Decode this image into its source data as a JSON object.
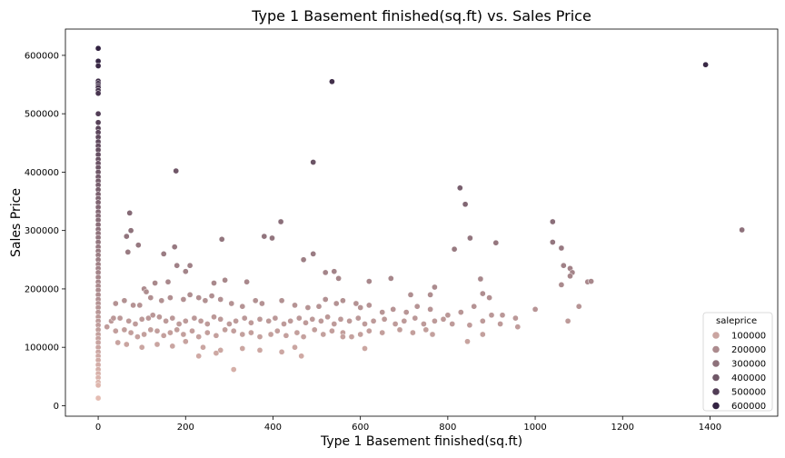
{
  "chart_data": {
    "type": "scatter",
    "title": "Type 1 Basement finished(sq.ft) vs. Sales Price",
    "xlabel": "Type 1 Basement finished(sq.ft)",
    "ylabel": "Sales Price",
    "xlim": [
      -75,
      1555
    ],
    "ylim": [
      -18000,
      645000
    ],
    "xticks": [
      0,
      200,
      400,
      600,
      800,
      1000,
      1200,
      1400
    ],
    "yticks": [
      0,
      100000,
      200000,
      300000,
      400000,
      500000,
      600000
    ],
    "grid": false,
    "legend": {
      "title": "saleprice",
      "placement": "bottom-right",
      "entries": [
        "100000",
        "200000",
        "300000",
        "400000",
        "500000",
        "600000"
      ],
      "values": [
        100000,
        200000,
        300000,
        400000,
        500000,
        600000
      ]
    },
    "hue_range": [
      0,
      625000
    ],
    "color_light": "#e8bfb4",
    "color_dark": "#2d1e3e",
    "points": [
      [
        0,
        612000
      ],
      [
        0,
        590000
      ],
      [
        0,
        582000
      ],
      [
        0,
        556000
      ],
      [
        0,
        552000
      ],
      [
        0,
        548000
      ],
      [
        0,
        545000
      ],
      [
        0,
        540000
      ],
      [
        0,
        535000
      ],
      [
        0,
        500000
      ],
      [
        0,
        485000
      ],
      [
        0,
        475000
      ],
      [
        0,
        468000
      ],
      [
        0,
        460000
      ],
      [
        0,
        452000
      ],
      [
        0,
        445000
      ],
      [
        0,
        438000
      ],
      [
        0,
        430000
      ],
      [
        0,
        422000
      ],
      [
        0,
        415000
      ],
      [
        0,
        408000
      ],
      [
        0,
        400000
      ],
      [
        0,
        392000
      ],
      [
        0,
        385000
      ],
      [
        0,
        378000
      ],
      [
        0,
        370000
      ],
      [
        0,
        362000
      ],
      [
        0,
        355000
      ],
      [
        0,
        348000
      ],
      [
        0,
        340000
      ],
      [
        0,
        332000
      ],
      [
        0,
        325000
      ],
      [
        0,
        318000
      ],
      [
        0,
        310000
      ],
      [
        0,
        302000
      ],
      [
        0,
        295000
      ],
      [
        0,
        288000
      ],
      [
        0,
        280000
      ],
      [
        0,
        272000
      ],
      [
        0,
        265000
      ],
      [
        0,
        258000
      ],
      [
        0,
        250000
      ],
      [
        0,
        242000
      ],
      [
        0,
        235000
      ],
      [
        0,
        228000
      ],
      [
        0,
        220000
      ],
      [
        0,
        212000
      ],
      [
        0,
        205000
      ],
      [
        0,
        198000
      ],
      [
        0,
        190000
      ],
      [
        0,
        182000
      ],
      [
        0,
        175000
      ],
      [
        0,
        168000
      ],
      [
        0,
        160000
      ],
      [
        0,
        152000
      ],
      [
        0,
        145000
      ],
      [
        0,
        138000
      ],
      [
        0,
        130000
      ],
      [
        0,
        122000
      ],
      [
        0,
        115000
      ],
      [
        0,
        108000
      ],
      [
        0,
        100000
      ],
      [
        0,
        92000
      ],
      [
        0,
        85000
      ],
      [
        0,
        78000
      ],
      [
        0,
        70000
      ],
      [
        0,
        62000
      ],
      [
        0,
        55000
      ],
      [
        0,
        48000
      ],
      [
        0,
        40000
      ],
      [
        0,
        35000
      ],
      [
        0,
        13000
      ],
      [
        1390,
        584000
      ],
      [
        535,
        555000
      ],
      [
        1473,
        301000
      ],
      [
        178,
        402000
      ],
      [
        492,
        417000
      ],
      [
        828,
        373000
      ],
      [
        840,
        345000
      ],
      [
        72,
        330000
      ],
      [
        418,
        315000
      ],
      [
        1040,
        315000
      ],
      [
        851,
        287000
      ],
      [
        75,
        300000
      ],
      [
        398,
        287000
      ],
      [
        380,
        290000
      ],
      [
        65,
        290000
      ],
      [
        1040,
        280000
      ],
      [
        910,
        279000
      ],
      [
        1060,
        270000
      ],
      [
        283,
        285000
      ],
      [
        92,
        275000
      ],
      [
        150,
        260000
      ],
      [
        68,
        263000
      ],
      [
        492,
        260000
      ],
      [
        815,
        268000
      ],
      [
        470,
        250000
      ],
      [
        1065,
        240000
      ],
      [
        1080,
        235000
      ],
      [
        1085,
        228000
      ],
      [
        1080,
        222000
      ],
      [
        180,
        240000
      ],
      [
        210,
        240000
      ],
      [
        175,
        272000
      ],
      [
        200,
        230000
      ],
      [
        520,
        228000
      ],
      [
        540,
        230000
      ],
      [
        550,
        218000
      ],
      [
        670,
        218000
      ],
      [
        620,
        213000
      ],
      [
        875,
        217000
      ],
      [
        1120,
        212000
      ],
      [
        1128,
        213000
      ],
      [
        1060,
        207000
      ],
      [
        770,
        203000
      ],
      [
        880,
        192000
      ],
      [
        895,
        185000
      ],
      [
        760,
        190000
      ],
      [
        715,
        190000
      ],
      [
        340,
        212000
      ],
      [
        290,
        215000
      ],
      [
        265,
        210000
      ],
      [
        130,
        210000
      ],
      [
        160,
        212000
      ],
      [
        105,
        200000
      ],
      [
        110,
        195000
      ],
      [
        60,
        180000
      ],
      [
        40,
        175000
      ],
      [
        80,
        172000
      ],
      [
        95,
        172000
      ],
      [
        120,
        185000
      ],
      [
        145,
        180000
      ],
      [
        165,
        185000
      ],
      [
        195,
        182000
      ],
      [
        210,
        190000
      ],
      [
        230,
        185000
      ],
      [
        245,
        180000
      ],
      [
        260,
        188000
      ],
      [
        280,
        182000
      ],
      [
        305,
        175000
      ],
      [
        330,
        170000
      ],
      [
        360,
        180000
      ],
      [
        375,
        175000
      ],
      [
        420,
        180000
      ],
      [
        450,
        172000
      ],
      [
        480,
        168000
      ],
      [
        505,
        170000
      ],
      [
        520,
        182000
      ],
      [
        545,
        175000
      ],
      [
        560,
        180000
      ],
      [
        590,
        175000
      ],
      [
        600,
        168000
      ],
      [
        620,
        172000
      ],
      [
        650,
        160000
      ],
      [
        675,
        165000
      ],
      [
        705,
        160000
      ],
      [
        730,
        170000
      ],
      [
        760,
        165000
      ],
      [
        800,
        155000
      ],
      [
        830,
        160000
      ],
      [
        860,
        170000
      ],
      [
        900,
        155000
      ],
      [
        925,
        155000
      ],
      [
        955,
        150000
      ],
      [
        1000,
        165000
      ],
      [
        1075,
        145000
      ],
      [
        1100,
        170000
      ],
      [
        50,
        150000
      ],
      [
        70,
        145000
      ],
      [
        85,
        140000
      ],
      [
        100,
        148000
      ],
      [
        115,
        150000
      ],
      [
        125,
        155000
      ],
      [
        140,
        152000
      ],
      [
        155,
        145000
      ],
      [
        170,
        150000
      ],
      [
        185,
        140000
      ],
      [
        200,
        145000
      ],
      [
        220,
        150000
      ],
      [
        235,
        145000
      ],
      [
        250,
        140000
      ],
      [
        265,
        152000
      ],
      [
        280,
        148000
      ],
      [
        300,
        140000
      ],
      [
        315,
        145000
      ],
      [
        335,
        150000
      ],
      [
        350,
        142000
      ],
      [
        370,
        148000
      ],
      [
        390,
        145000
      ],
      [
        405,
        150000
      ],
      [
        425,
        140000
      ],
      [
        440,
        145000
      ],
      [
        460,
        150000
      ],
      [
        475,
        142000
      ],
      [
        490,
        148000
      ],
      [
        510,
        145000
      ],
      [
        525,
        152000
      ],
      [
        540,
        140000
      ],
      [
        555,
        148000
      ],
      [
        575,
        145000
      ],
      [
        595,
        150000
      ],
      [
        610,
        140000
      ],
      [
        630,
        145000
      ],
      [
        655,
        148000
      ],
      [
        680,
        140000
      ],
      [
        700,
        145000
      ],
      [
        725,
        150000
      ],
      [
        745,
        140000
      ],
      [
        770,
        145000
      ],
      [
        790,
        148000
      ],
      [
        810,
        140000
      ],
      [
        850,
        138000
      ],
      [
        880,
        145000
      ],
      [
        920,
        140000
      ],
      [
        960,
        135000
      ],
      [
        30,
        145000
      ],
      [
        40,
        128000
      ],
      [
        60,
        130000
      ],
      [
        75,
        125000
      ],
      [
        90,
        118000
      ],
      [
        105,
        122000
      ],
      [
        120,
        130000
      ],
      [
        135,
        128000
      ],
      [
        150,
        120000
      ],
      [
        165,
        125000
      ],
      [
        180,
        130000
      ],
      [
        195,
        122000
      ],
      [
        215,
        128000
      ],
      [
        230,
        118000
      ],
      [
        250,
        125000
      ],
      [
        270,
        120000
      ],
      [
        290,
        130000
      ],
      [
        310,
        128000
      ],
      [
        330,
        122000
      ],
      [
        350,
        125000
      ],
      [
        370,
        118000
      ],
      [
        395,
        122000
      ],
      [
        410,
        128000
      ],
      [
        430,
        120000
      ],
      [
        455,
        125000
      ],
      [
        470,
        118000
      ],
      [
        495,
        130000
      ],
      [
        515,
        122000
      ],
      [
        535,
        128000
      ],
      [
        560,
        125000
      ],
      [
        580,
        118000
      ],
      [
        600,
        122000
      ],
      [
        620,
        128000
      ],
      [
        650,
        125000
      ],
      [
        690,
        130000
      ],
      [
        720,
        125000
      ],
      [
        750,
        130000
      ],
      [
        765,
        122000
      ],
      [
        845,
        110000
      ],
      [
        880,
        122000
      ],
      [
        45,
        108000
      ],
      [
        65,
        105000
      ],
      [
        100,
        100000
      ],
      [
        135,
        105000
      ],
      [
        170,
        102000
      ],
      [
        200,
        110000
      ],
      [
        240,
        100000
      ],
      [
        280,
        95000
      ],
      [
        330,
        98000
      ],
      [
        370,
        95000
      ],
      [
        420,
        92000
      ],
      [
        450,
        100000
      ],
      [
        560,
        118000
      ],
      [
        610,
        98000
      ],
      [
        230,
        85000
      ],
      [
        270,
        90000
      ],
      [
        465,
        85000
      ],
      [
        310,
        62000
      ],
      [
        20,
        135000
      ],
      [
        35,
        150000
      ]
    ]
  }
}
